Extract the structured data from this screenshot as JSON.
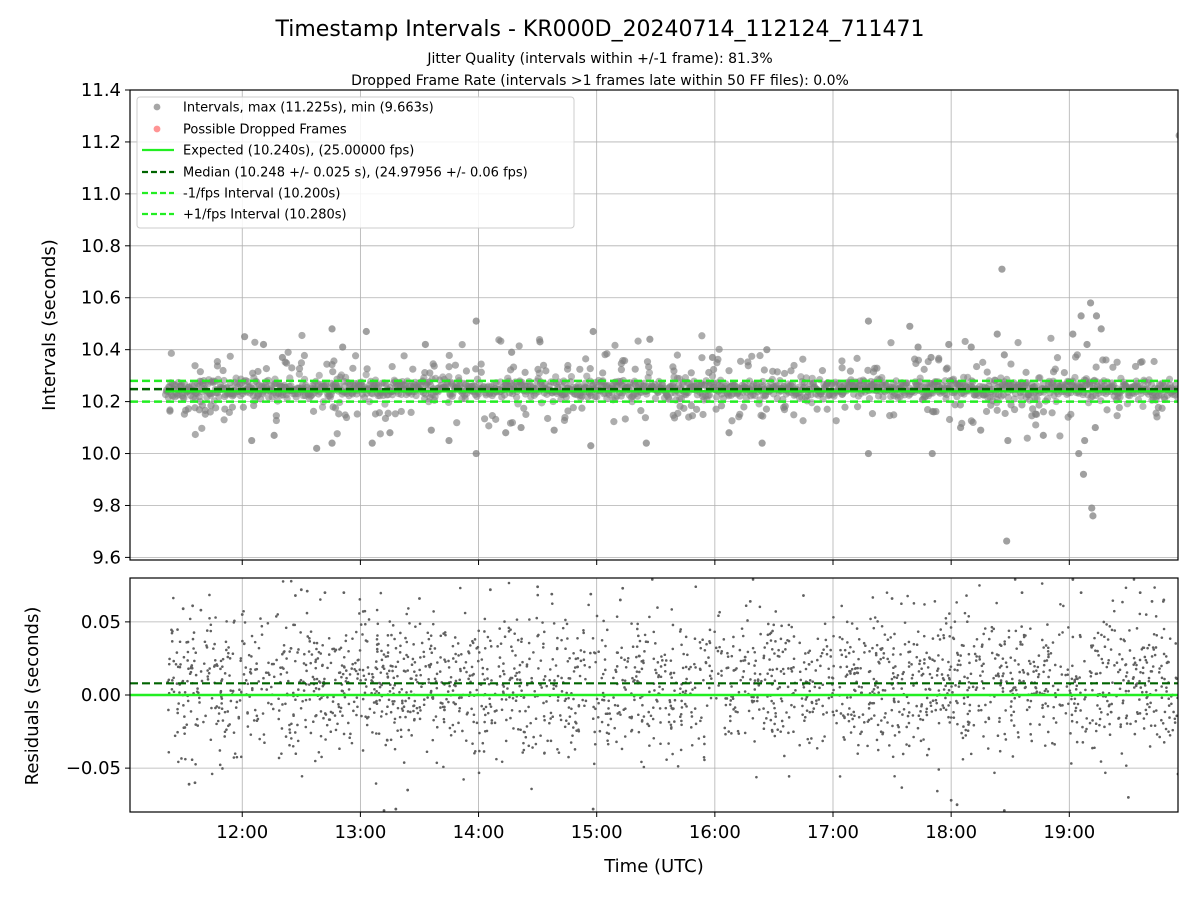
{
  "figure": {
    "title": "Timestamp Intervals - KR000D_20240714_112124_711471",
    "subtitle_1": "Jitter Quality (intervals within +/-1 frame): 81.3%",
    "subtitle_2": "Dropped Frame Rate (intervals >1 frames late within 50 FF files): 0.0%",
    "xlabel": "Time (UTC)"
  },
  "chart_data": [
    {
      "type": "scatter",
      "panel": "top",
      "ylabel": "Intervals (seconds)",
      "xlim": [
        11.05,
        19.92
      ],
      "ylim": [
        9.59,
        11.4
      ],
      "x_unit": "hours UTC",
      "xticks": [
        12,
        13,
        14,
        15,
        16,
        17,
        18,
        19
      ],
      "xtick_labels": [
        "12:00",
        "13:00",
        "14:00",
        "15:00",
        "16:00",
        "17:00",
        "18:00",
        "19:00"
      ],
      "yticks": [
        9.6,
        9.8,
        10.0,
        10.2,
        10.4,
        10.6,
        10.8,
        11.0,
        11.2,
        11.4
      ],
      "ytick_labels": [
        "9.6",
        "9.8",
        "10.0",
        "10.2",
        "10.4",
        "10.6",
        "10.8",
        "11.0",
        "11.2",
        "11.4"
      ],
      "grid": true,
      "legend_position": "upper-left",
      "data_start_time": "11:21",
      "data_end_time": "19:55",
      "series": [
        {
          "name": "Intervals, max (11.225s), min (9.663s)",
          "kind": "scatter",
          "color": "#808080",
          "max": 11.225,
          "min": 9.663,
          "x": [
            19.93,
            18.43,
            18.47,
            12.02,
            12.08,
            12.18,
            12.34,
            12.76,
            12.85,
            13.05,
            13.55,
            13.98,
            14.28,
            14.52,
            14.97,
            15.45,
            15.98,
            16.12,
            16.44,
            17.3,
            17.65,
            17.72,
            17.83,
            17.98,
            18.17,
            18.39,
            18.45,
            19.03,
            19.1,
            19.15,
            19.18,
            19.23,
            19.27,
            19.12,
            19.2,
            12.27,
            12.63,
            12.76,
            13.1,
            13.25,
            13.6,
            13.75,
            13.98,
            14.23,
            14.36,
            14.64,
            14.95,
            15.42,
            16.4,
            17.3,
            17.84,
            18.08,
            18.25,
            18.48,
            18.78,
            19.08,
            19.13,
            19.19,
            19.22
          ],
          "y": [
            11.225,
            10.71,
            9.663,
            10.45,
            10.05,
            10.42,
            10.37,
            10.48,
            10.41,
            10.47,
            10.42,
            10.51,
            10.39,
            10.43,
            10.47,
            10.44,
            10.37,
            10.08,
            10.4,
            10.51,
            10.49,
            10.41,
            10.37,
            10.42,
            10.41,
            10.46,
            10.38,
            10.46,
            10.53,
            10.42,
            10.58,
            10.53,
            10.48,
            9.92,
            9.76,
            10.07,
            10.02,
            10.04,
            10.04,
            10.08,
            10.09,
            10.05,
            10.0,
            10.08,
            10.1,
            10.09,
            10.03,
            10.04,
            10.04,
            10.0,
            10.0,
            10.1,
            10.09,
            10.05,
            10.07,
            10.0,
            10.05,
            9.79,
            10.1
          ]
        },
        {
          "name": "Possible Dropped Frames",
          "kind": "scatter",
          "color": "#ff6666",
          "x": [],
          "y": []
        },
        {
          "name": "Expected (10.240s), (25.00000 fps)",
          "kind": "hline",
          "value": 10.24,
          "color": "#22ee22",
          "style": "solid",
          "x_range": [
            11.35,
            19.92
          ]
        },
        {
          "name": "Median (10.248 +/- 0.025 s), (24.97956 +/- 0.06 fps)",
          "kind": "hline",
          "value": 10.248,
          "color": "#006400",
          "style": "dashed"
        },
        {
          "name": "-1/fps Interval (10.200s)",
          "kind": "hline",
          "value": 10.2,
          "color": "#22ee22",
          "style": "dashed"
        },
        {
          "name": "+1/fps Interval (10.280s)",
          "kind": "hline",
          "value": 10.28,
          "color": "#22ee22",
          "style": "dashed"
        }
      ]
    },
    {
      "type": "scatter",
      "panel": "bottom",
      "ylabel": "Residuals (seconds)",
      "xlim": [
        11.05,
        19.92
      ],
      "ylim": [
        -0.08,
        0.08
      ],
      "xticks": [
        12,
        13,
        14,
        15,
        16,
        17,
        18,
        19
      ],
      "xtick_labels": [
        "12:00",
        "13:00",
        "14:00",
        "15:00",
        "16:00",
        "17:00",
        "18:00",
        "19:00"
      ],
      "yticks": [
        -0.05,
        0.0,
        0.05
      ],
      "ytick_labels": [
        "−0.05",
        "0.00",
        "0.05"
      ],
      "grid": true,
      "series": [
        {
          "name": "residuals",
          "kind": "scatter",
          "color": "#606060",
          "x": [
            11.55,
            11.6,
            12.5,
            13.2,
            13.3,
            13.4,
            14.5,
            14.97,
            15.22,
            18.0,
            18.05,
            18.45,
            19.03,
            19.6,
            19.92,
            11.5,
            11.58,
            11.65,
            12.0,
            12.45,
            12.55,
            12.7,
            12.86,
            13.5,
            14.1,
            14.62,
            14.95,
            15.2,
            16.3,
            16.75,
            17.5,
            18.6,
            19.1,
            19.5,
            19.7,
            19.8
          ],
          "y": [
            -0.061,
            -0.06,
            0.072,
            -0.079,
            -0.078,
            -0.065,
            0.074,
            -0.078,
            0.073,
            -0.072,
            -0.075,
            -0.079,
            0.079,
            0.07,
            -0.054,
            0.059,
            0.061,
            0.058,
            0.055,
            0.068,
            0.071,
            0.07,
            0.07,
            0.066,
            0.072,
            0.069,
            0.069,
            0.065,
            0.064,
            0.068,
            0.066,
            0.07,
            0.07,
            -0.07,
            0.064,
            0.065
          ]
        },
        {
          "name": "median_residual",
          "kind": "hline",
          "value": 0.008,
          "color": "#006400",
          "style": "dashed"
        },
        {
          "name": "zero",
          "kind": "hline",
          "value": 0.0,
          "color": "#22ee22",
          "style": "solid"
        }
      ]
    }
  ]
}
